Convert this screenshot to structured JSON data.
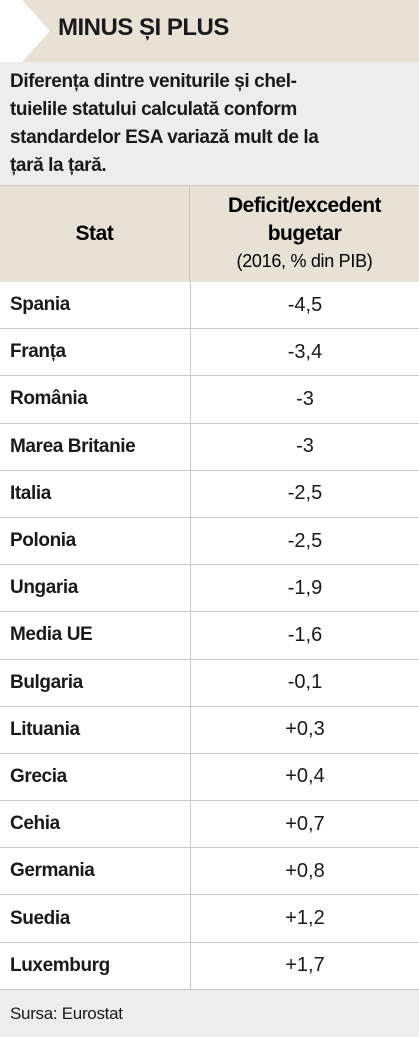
{
  "header": {
    "title": "MINUS ȘI PLUS",
    "subtitle": [
      "Diferența dintre veniturile și chel-",
      "tuielile statului calculată conform",
      "standardelor ESA variază mult de la",
      "țară la țară."
    ]
  },
  "table": {
    "columns": [
      {
        "title": "Stat"
      },
      {
        "title": "Deficit/excedent bugetar",
        "note": "(2016, % din PIB)"
      }
    ],
    "rows": [
      [
        "Spania",
        "-4,5"
      ],
      [
        "Franța",
        "-3,4"
      ],
      [
        "România",
        "-3"
      ],
      [
        "Marea Britanie",
        "-3"
      ],
      [
        "Italia",
        "-2,5"
      ],
      [
        "Polonia",
        "-2,5"
      ],
      [
        "Ungaria",
        "-1,9"
      ],
      [
        "Media UE",
        "-1,6"
      ],
      [
        "Bulgaria",
        "-0,1"
      ],
      [
        "Lituania",
        "+0,3"
      ],
      [
        "Grecia",
        "+0,4"
      ],
      [
        "Cehia",
        "+0,7"
      ],
      [
        "Germania",
        "+0,8"
      ],
      [
        "Suedia",
        "+1,2"
      ],
      [
        "Luxemburg",
        "+1,7"
      ]
    ]
  },
  "source": "Sursa: Eurostat"
}
